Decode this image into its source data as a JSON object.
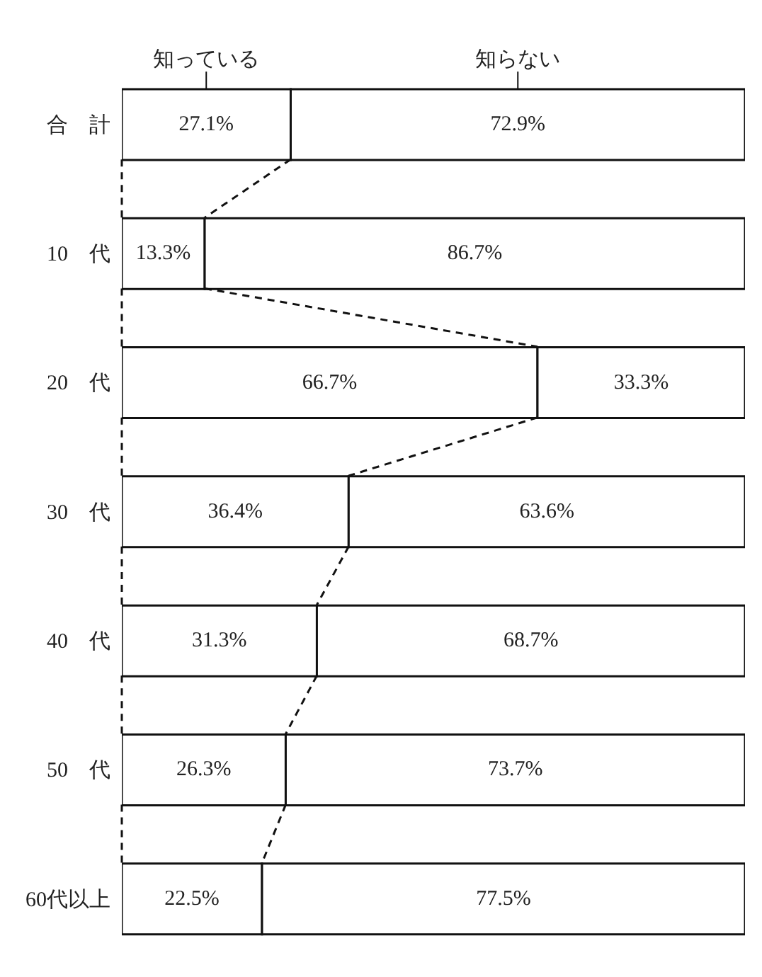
{
  "chart_data": {
    "type": "bar",
    "orientation": "horizontal",
    "stacked": true,
    "categories": [
      "合　計",
      "10　代",
      "20　代",
      "30　代",
      "40　代",
      "50　代",
      "60代以上"
    ],
    "series": [
      {
        "name": "知っている",
        "color": "#ffffff",
        "values": [
          27.1,
          13.3,
          66.7,
          36.4,
          31.3,
          26.3,
          22.5
        ],
        "value_labels": [
          "27.1%",
          "13.3%",
          "66.7%",
          "36.4%",
          "31.3%",
          "26.3%",
          "22.5%"
        ]
      },
      {
        "name": "知らない",
        "color": "#ffffff",
        "values": [
          72.9,
          86.7,
          33.3,
          63.6,
          68.7,
          73.7,
          77.5
        ],
        "value_labels": [
          "72.9%",
          "86.7%",
          "33.3%",
          "63.6%",
          "68.7%",
          "73.7%",
          "77.5%"
        ]
      }
    ],
    "xlim": [
      0,
      100
    ],
    "tick_labels": "y",
    "legend": "top"
  }
}
